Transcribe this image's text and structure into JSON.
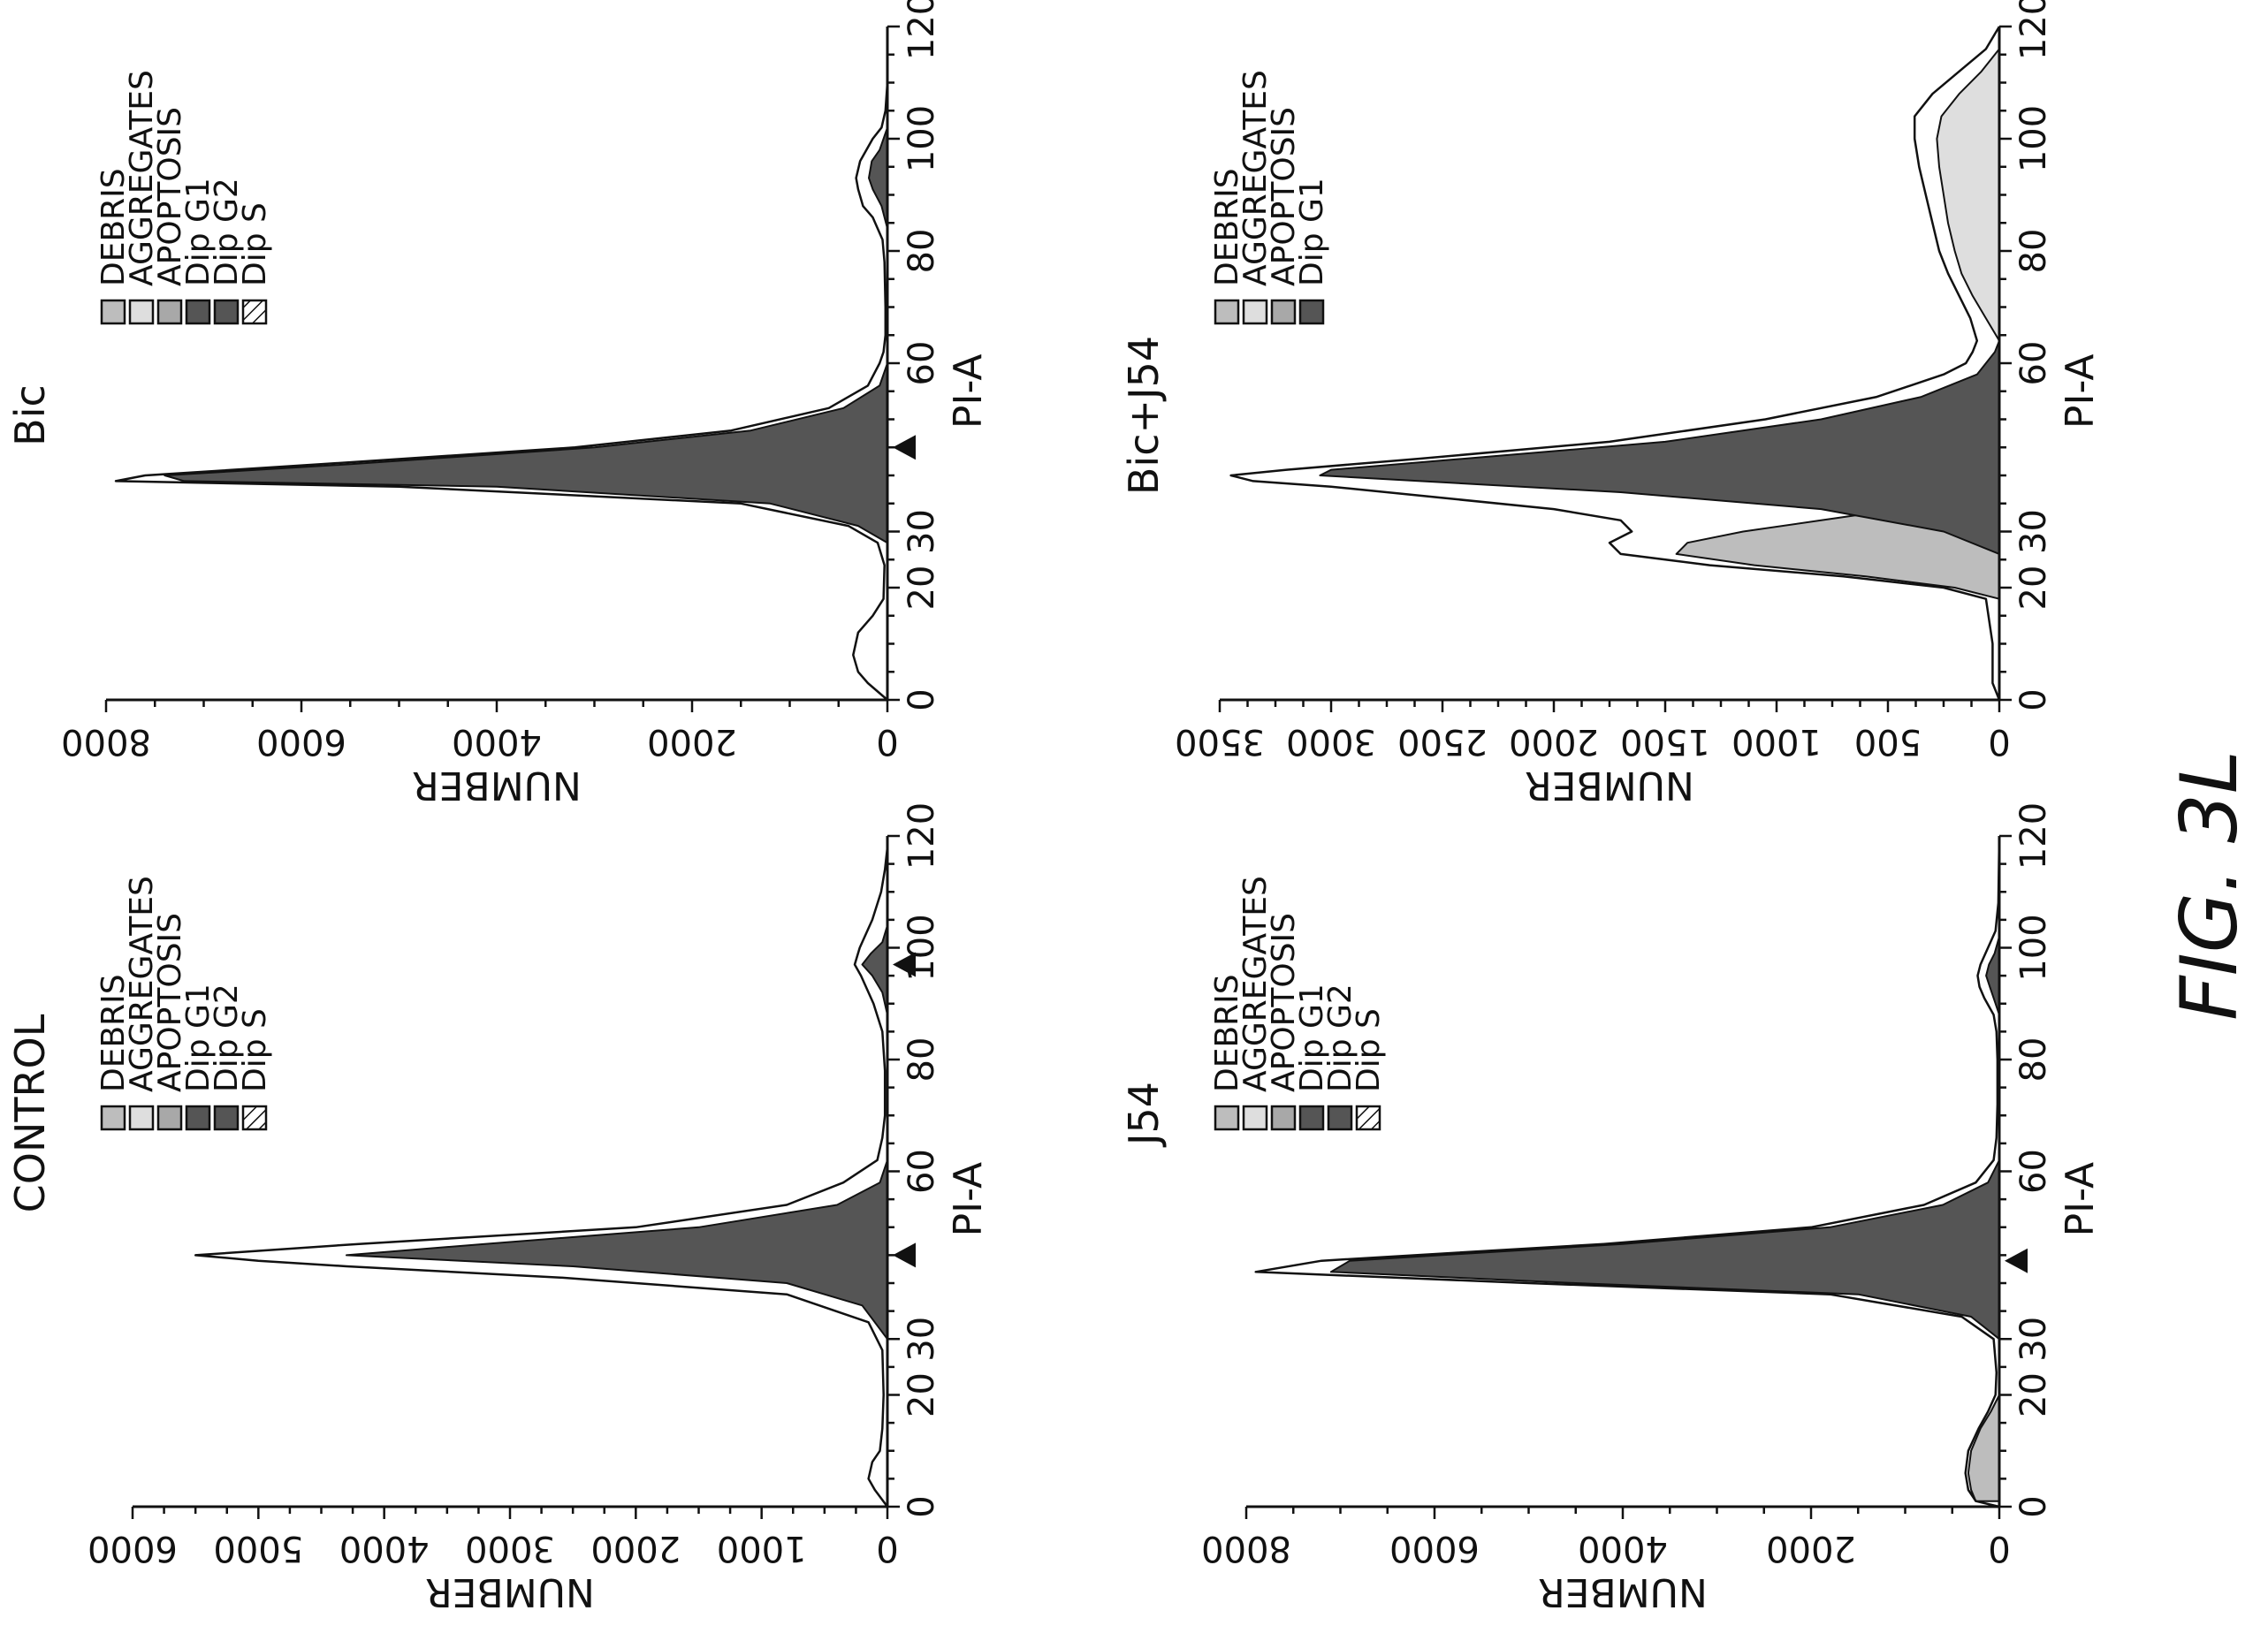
{
  "figure_label": "FIG. 3L",
  "chart_data": [
    {
      "type": "area",
      "title": "CONTROL",
      "xlabel": "PI-A",
      "ylabel": "NUMBER",
      "xlim": [
        0,
        120
      ],
      "ylim": [
        0,
        6000
      ],
      "x_ticks": [
        "0",
        "20",
        "30",
        "60",
        "80",
        "100",
        "120"
      ],
      "y_ticks": [
        "0",
        "1000",
        "2000",
        "3000",
        "4000",
        "5000",
        "6000"
      ],
      "legend": [
        {
          "label": "DEBRIS",
          "color": "#bdbdbd"
        },
        {
          "label": "AGGREGATES",
          "color": "#dedede"
        },
        {
          "label": "APOPTOSIS",
          "color": "#a8a8a8"
        },
        {
          "label": "Dip G1",
          "color": "#555555"
        },
        {
          "label": "Dip G2",
          "color": "#555555"
        },
        {
          "label": "Dip S",
          "color": "hatch"
        }
      ],
      "peak_markers_x": [
        45,
        97
      ],
      "series": [
        {
          "name": "Dip G1",
          "color": "#555555",
          "fill": true,
          "x": [
            30,
            36,
            40,
            43,
            45,
            47,
            50,
            54,
            58,
            62
          ],
          "y": [
            0,
            200,
            800,
            2500,
            4300,
            3200,
            1500,
            400,
            60,
            0
          ]
        },
        {
          "name": "Dip G2",
          "color": "#555555",
          "fill": true,
          "x": [
            88,
            92,
            95,
            97,
            99,
            101,
            104
          ],
          "y": [
            0,
            40,
            120,
            200,
            130,
            40,
            0
          ]
        },
        {
          "name": "Total",
          "color": "#111111",
          "fill": false,
          "x": [
            0,
            3,
            5,
            8,
            10,
            14,
            20,
            28,
            33,
            38,
            41,
            43,
            44,
            45,
            47,
            50,
            54,
            58,
            62,
            66,
            70,
            78,
            85,
            90,
            95,
            97,
            100,
            105,
            110,
            114,
            118,
            120
          ],
          "y": [
            0,
            100,
            150,
            120,
            60,
            40,
            30,
            40,
            150,
            800,
            2600,
            4300,
            5000,
            5500,
            4200,
            2000,
            800,
            350,
            80,
            40,
            20,
            20,
            40,
            110,
            210,
            260,
            220,
            120,
            50,
            20,
            0,
            0
          ]
        }
      ]
    },
    {
      "type": "area",
      "title": "Bic",
      "xlabel": "PI-A",
      "ylabel": "NUMBER",
      "xlim": [
        0,
        120
      ],
      "ylim": [
        0,
        8000
      ],
      "x_ticks": [
        "0",
        "20",
        "30",
        "60",
        "80",
        "100",
        "120"
      ],
      "y_ticks": [
        "0",
        "2000",
        "4000",
        "6000",
        "8000"
      ],
      "legend": [
        {
          "label": "DEBRIS",
          "color": "#bdbdbd"
        },
        {
          "label": "AGGREGATES",
          "color": "#dedede"
        },
        {
          "label": "APOPTOSIS",
          "color": "#a8a8a8"
        },
        {
          "label": "Dip G1",
          "color": "#555555"
        },
        {
          "label": "Dip G2",
          "color": "#555555"
        },
        {
          "label": "Dip S",
          "color": "hatch"
        }
      ],
      "peak_markers_x": [
        45
      ],
      "series": [
        {
          "name": "Dip G1",
          "color": "#555555",
          "fill": true,
          "x": [
            28,
            31,
            35,
            38,
            39,
            40,
            42,
            45,
            48,
            52,
            56,
            60
          ],
          "y": [
            0,
            300,
            1200,
            4000,
            7200,
            7400,
            5500,
            3000,
            1400,
            450,
            80,
            0
          ]
        },
        {
          "name": "Dip G2",
          "color": "#555555",
          "fill": true,
          "x": [
            84,
            88,
            91,
            93,
            96,
            98,
            102
          ],
          "y": [
            0,
            60,
            150,
            190,
            160,
            80,
            0
          ]
        },
        {
          "name": "Total",
          "color": "#111111",
          "fill": false,
          "x": [
            0,
            3,
            5,
            8,
            12,
            15,
            18,
            24,
            28,
            31,
            35,
            38,
            39,
            40,
            42,
            45,
            48,
            52,
            56,
            60,
            62,
            65,
            70,
            78,
            82,
            86,
            88,
            91,
            93,
            96,
            100,
            102,
            105,
            110,
            120
          ],
          "y": [
            0,
            200,
            300,
            350,
            300,
            150,
            40,
            30,
            100,
            400,
            1500,
            5000,
            7900,
            7600,
            5800,
            3200,
            1600,
            600,
            200,
            80,
            40,
            20,
            20,
            30,
            50,
            150,
            250,
            300,
            320,
            280,
            150,
            60,
            20,
            0,
            0
          ]
        }
      ]
    },
    {
      "type": "area",
      "title": "J54",
      "xlabel": "PI-A",
      "ylabel": "NUMBER",
      "xlim": [
        0,
        120
      ],
      "ylim": [
        0,
        8000
      ],
      "x_ticks": [
        "0",
        "20",
        "30",
        "60",
        "80",
        "100",
        "120"
      ],
      "y_ticks": [
        "0",
        "2000",
        "4000",
        "6000",
        "8000"
      ],
      "legend": [
        {
          "label": "DEBRIS",
          "color": "#bdbdbd"
        },
        {
          "label": "AGGREGATES",
          "color": "#dedede"
        },
        {
          "label": "APOPTOSIS",
          "color": "#a8a8a8"
        },
        {
          "label": "Dip G1",
          "color": "#555555"
        },
        {
          "label": "Dip G2",
          "color": "#555555"
        },
        {
          "label": "Dip S",
          "color": "hatch"
        }
      ],
      "peak_markers_x": [
        44
      ],
      "series": [
        {
          "name": "DEBRIS",
          "color": "#bdbdbd",
          "fill": true,
          "x": [
            1,
            3,
            6,
            10,
            14,
            17,
            20
          ],
          "y": [
            250,
            300,
            330,
            300,
            200,
            90,
            0
          ]
        },
        {
          "name": "Dip G1",
          "color": "#555555",
          "fill": true,
          "x": [
            30,
            34,
            38,
            40,
            42,
            44,
            47,
            50,
            54,
            58,
            62
          ],
          "y": [
            0,
            300,
            1500,
            4500,
            7100,
            6900,
            4000,
            1800,
            600,
            120,
            0
          ]
        },
        {
          "name": "Dip G2",
          "color": "#555555",
          "fill": true,
          "x": [
            88,
            91,
            93,
            95,
            97,
            99,
            102
          ],
          "y": [
            0,
            60,
            100,
            140,
            110,
            50,
            0
          ]
        },
        {
          "name": "Total",
          "color": "#111111",
          "fill": false,
          "x": [
            0,
            1,
            3,
            6,
            10,
            14,
            17,
            20,
            24,
            30,
            34,
            38,
            40,
            42,
            44,
            47,
            50,
            54,
            58,
            62,
            66,
            72,
            80,
            85,
            88,
            91,
            93,
            95,
            97,
            100,
            103,
            108,
            120
          ],
          "y": [
            0,
            250,
            330,
            360,
            330,
            220,
            120,
            40,
            30,
            60,
            400,
            1800,
            5000,
            7900,
            7200,
            4200,
            2000,
            800,
            250,
            60,
            30,
            20,
            20,
            30,
            60,
            160,
            210,
            230,
            200,
            120,
            40,
            10,
            0
          ]
        }
      ]
    },
    {
      "type": "area",
      "title": "Bic+J54",
      "xlabel": "PI-A",
      "ylabel": "NUMBER",
      "xlim": [
        0,
        120
      ],
      "ylim": [
        0,
        3500
      ],
      "x_ticks": [
        "0",
        "20",
        "30",
        "60",
        "80",
        "100",
        "120"
      ],
      "y_ticks": [
        "0",
        "500",
        "1000",
        "1500",
        "2000",
        "2500",
        "3000",
        "3500"
      ],
      "legend": [
        {
          "label": "DEBRIS",
          "color": "#bdbdbd"
        },
        {
          "label": "AGGREGATES",
          "color": "#dedede"
        },
        {
          "label": "APOPTOSIS",
          "color": "#a8a8a8"
        },
        {
          "label": "Dip G1",
          "color": "#555555"
        }
      ],
      "peak_markers_x": [],
      "series": [
        {
          "name": "APOPTOSIS",
          "color": "#bdbdbd",
          "fill": true,
          "x": [
            18,
            20,
            22,
            24,
            26,
            28,
            30,
            32,
            34,
            36,
            38,
            40
          ],
          "y": [
            0,
            200,
            600,
            1100,
            1450,
            1400,
            1150,
            800,
            450,
            200,
            60,
            0
          ]
        },
        {
          "name": "Dip G1",
          "color": "#555555",
          "fill": true,
          "x": [
            26,
            30,
            34,
            37,
            39,
            40,
            41,
            43,
            46,
            50,
            54,
            58,
            62,
            64
          ],
          "y": [
            0,
            250,
            800,
            1700,
            2600,
            3050,
            3000,
            2400,
            1500,
            800,
            350,
            100,
            20,
            0
          ]
        },
        {
          "name": "AGGREGATES",
          "color": "#dedede",
          "fill": true,
          "x": [
            64,
            68,
            72,
            76,
            80,
            85,
            90,
            95,
            100,
            104,
            108,
            112,
            116
          ],
          "y": [
            0,
            60,
            120,
            170,
            200,
            230,
            250,
            270,
            280,
            260,
            180,
            80,
            0
          ]
        },
        {
          "name": "Total",
          "color": "#111111",
          "fill": false,
          "x": [
            0,
            3,
            10,
            18,
            20,
            22,
            24,
            26,
            28,
            30,
            32,
            34,
            36,
            38,
            39,
            40,
            41,
            43,
            46,
            50,
            54,
            58,
            60,
            62,
            64,
            68,
            72,
            76,
            80,
            85,
            90,
            95,
            100,
            104,
            108,
            112,
            116,
            120
          ],
          "y": [
            0,
            30,
            30,
            60,
            250,
            700,
            1300,
            1700,
            1750,
            1650,
            1700,
            2000,
            2500,
            3000,
            3350,
            3450,
            3200,
            2600,
            1750,
            1050,
            550,
            250,
            150,
            120,
            100,
            130,
            180,
            230,
            270,
            300,
            330,
            360,
            380,
            380,
            300,
            180,
            60,
            0
          ]
        }
      ]
    }
  ]
}
